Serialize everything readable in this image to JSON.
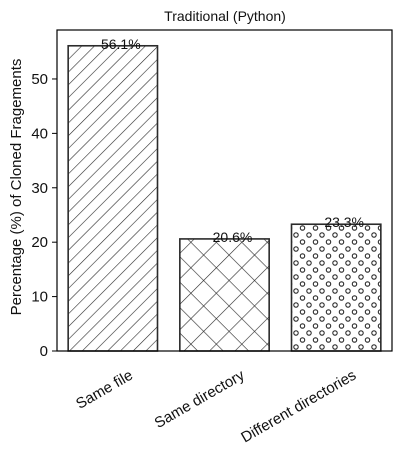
{
  "chart_data": {
    "type": "bar",
    "title": "Traditional (Python)",
    "xlabel": "",
    "ylabel": "Percentage (%) of Cloned Fragements",
    "categories": [
      "Same file",
      "Same directory",
      "Different directories"
    ],
    "values": [
      56.1,
      20.6,
      23.3
    ],
    "value_labels": [
      "56.1%",
      "20.6%",
      "23.3%"
    ],
    "patterns": [
      "diagonal-hatch",
      "cross-hatch",
      "circles"
    ],
    "ylim": [
      0,
      59
    ],
    "yticks": [
      0,
      10,
      20,
      30,
      40,
      50
    ],
    "grid": false,
    "colors": {
      "fill": "#ffffff",
      "edge": "#2b2b2b",
      "axis": "#000000"
    }
  }
}
